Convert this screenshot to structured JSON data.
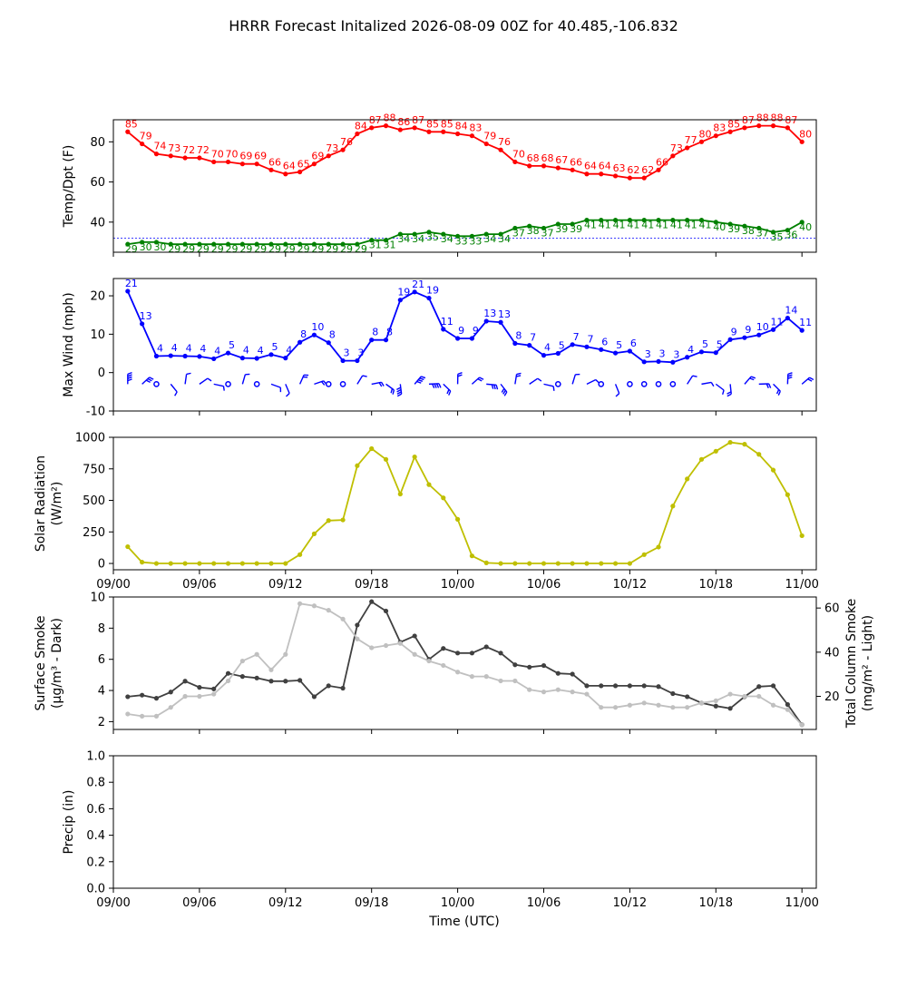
{
  "title": "HRRR Forecast Initalized 2026-08-09 00Z for 40.485,-106.832",
  "xlabel": "Time (UTC)",
  "x_tick_labels": [
    "09/00",
    "09/06",
    "09/12",
    "09/18",
    "10/00",
    "10/06",
    "10/12",
    "10/18",
    "11/00"
  ],
  "chart_data": [
    {
      "type": "line",
      "panel": "temp_dpt",
      "ylabel": "Temp/Dpt (F)",
      "x_hours": [
        1,
        2,
        3,
        4,
        5,
        6,
        7,
        8,
        9,
        10,
        11,
        12,
        13,
        14,
        15,
        16,
        17,
        18,
        19,
        20,
        21,
        22,
        23,
        24,
        25,
        26,
        27,
        28,
        29,
        30,
        31,
        32,
        33,
        34,
        35,
        36,
        37,
        38,
        39,
        40,
        41,
        42,
        43,
        44,
        45,
        46,
        47,
        48
      ],
      "xlim_hours": [
        0,
        49
      ],
      "ylim": [
        25,
        91
      ],
      "yticks": [
        40,
        60,
        80
      ],
      "reference_line": {
        "y": 32,
        "color": "#0000ff",
        "style": "dashed"
      },
      "series": [
        {
          "name": "Temp",
          "color": "#ff0000",
          "values": [
            85,
            79,
            74,
            73,
            72,
            72,
            70,
            70,
            69,
            69,
            66,
            64,
            65,
            69,
            73,
            76,
            84,
            87,
            88,
            86,
            87,
            85,
            85,
            84,
            83,
            79,
            76,
            70,
            68,
            68,
            67,
            66,
            64,
            64,
            63,
            62,
            62,
            66,
            73,
            77,
            80,
            83,
            85,
            87,
            88,
            88,
            87,
            80
          ]
        },
        {
          "name": "Dewpoint",
          "color": "#008000",
          "values": [
            29,
            30,
            30,
            29,
            29,
            29,
            29,
            29,
            29,
            29,
            29,
            29,
            29,
            29,
            29,
            29,
            29,
            31,
            31,
            34,
            34,
            35,
            34,
            33,
            33,
            34,
            34,
            37,
            38,
            37,
            39,
            39,
            41,
            41,
            41,
            41,
            41,
            41,
            41,
            41,
            41,
            40,
            39,
            38,
            37,
            35,
            36,
            40
          ]
        }
      ]
    },
    {
      "type": "line",
      "panel": "wind",
      "ylabel": "Max Wind (mph)",
      "ylim": [
        -10,
        24.5
      ],
      "yticks": [
        -10,
        0,
        10,
        20
      ],
      "series": [
        {
          "name": "Max Wind",
          "color": "#0000ff",
          "values": [
            21,
            13,
            4,
            4,
            4,
            4,
            4,
            5,
            4,
            4,
            5,
            4,
            8,
            10,
            8,
            3,
            3,
            8,
            8,
            19,
            21,
            19,
            11,
            9,
            9,
            13,
            13,
            8,
            7,
            4,
            5,
            7,
            7,
            6,
            5,
            6,
            3,
            3,
            3,
            4,
            5,
            5,
            9,
            9,
            10,
            11,
            14,
            11
          ],
          "plotted_values": [
            21.2,
            12.7,
            4.3,
            4.4,
            4.3,
            4.2,
            3.6,
            5.1,
            3.8,
            3.7,
            4.7,
            3.8,
            7.9,
            9.8,
            7.8,
            3.1,
            3.1,
            8.5,
            8.5,
            18.9,
            21.0,
            19.4,
            11.3,
            8.9,
            8.9,
            13.4,
            13.1,
            7.6,
            7.1,
            4.5,
            5.0,
            7.3,
            6.7,
            6.0,
            5.1,
            5.6,
            2.8,
            2.9,
            2.7,
            4.0,
            5.4,
            5.2,
            8.6,
            9.1,
            9.8,
            11.2,
            14.2,
            11.0
          ]
        }
      ],
      "wind_barbs": {
        "y": -3,
        "calm_hours": [
          3,
          8,
          10,
          15,
          16,
          31,
          34,
          36,
          37,
          38,
          39
        ],
        "color": "#0000ff"
      }
    },
    {
      "type": "line",
      "panel": "solar",
      "ylabel": "Solar Radiation",
      "ylabel_units": "(W/m²)",
      "ylim": [
        -50,
        1000
      ],
      "yticks": [
        0,
        250,
        500,
        750,
        1000
      ],
      "series": [
        {
          "name": "Solar Radiation",
          "color": "#bfbf00",
          "values": [
            133,
            10,
            0,
            0,
            0,
            0,
            0,
            0,
            0,
            0,
            0,
            0,
            70,
            235,
            340,
            345,
            775,
            910,
            825,
            550,
            845,
            625,
            520,
            350,
            60,
            5,
            0,
            0,
            0,
            0,
            0,
            0,
            0,
            0,
            0,
            0,
            70,
            130,
            455,
            670,
            825,
            890,
            960,
            945,
            865,
            740,
            545,
            220
          ]
        }
      ]
    },
    {
      "type": "line",
      "panel": "smoke",
      "ylabel": "Surface Smoke",
      "ylabel_units": "(μg/m³ - Dark)",
      "ylabel_right": "Total Column Smoke",
      "ylabel_right_units": "(mg/m² - Light)",
      "ylim": [
        1.5,
        10
      ],
      "yticks": [
        2,
        4,
        6,
        8,
        10
      ],
      "ylim_right": [
        5,
        65
      ],
      "yticks_right": [
        20,
        40,
        60
      ],
      "series": [
        {
          "name": "Surface Smoke",
          "axis": "left",
          "color": "#404040",
          "values": [
            3.6,
            3.7,
            3.5,
            3.9,
            4.6,
            4.2,
            4.1,
            5.1,
            4.9,
            4.8,
            4.6,
            4.6,
            4.65,
            3.6,
            4.3,
            4.15,
            8.2,
            9.7,
            9.1,
            7.1,
            7.5,
            6.0,
            6.7,
            6.4,
            6.4,
            6.8,
            6.4,
            5.65,
            5.5,
            5.6,
            5.1,
            5.05,
            4.3,
            4.3,
            4.3,
            4.3,
            4.3,
            4.25,
            3.8,
            3.6,
            3.2,
            3.0,
            2.85,
            3.6,
            4.25,
            4.3,
            3.1,
            1.8
          ]
        },
        {
          "name": "Total Column Smoke",
          "axis": "right",
          "color": "#c0c0c0",
          "values": [
            12,
            11,
            11,
            15,
            20,
            20,
            21,
            27,
            36,
            39,
            32,
            39,
            62,
            61,
            59,
            55,
            46,
            42,
            43,
            44,
            39,
            36,
            34,
            31,
            29,
            29,
            27,
            27,
            23,
            22,
            23,
            22,
            21,
            15,
            15,
            16,
            17,
            16,
            15,
            15,
            17,
            18,
            21,
            20,
            20,
            16,
            14,
            7
          ]
        }
      ]
    },
    {
      "type": "line",
      "panel": "precip",
      "ylabel": "Precip (in)",
      "ylim": [
        0,
        1
      ],
      "yticks": [
        0.0,
        0.2,
        0.4,
        0.6,
        0.8,
        1.0
      ],
      "series": []
    }
  ]
}
